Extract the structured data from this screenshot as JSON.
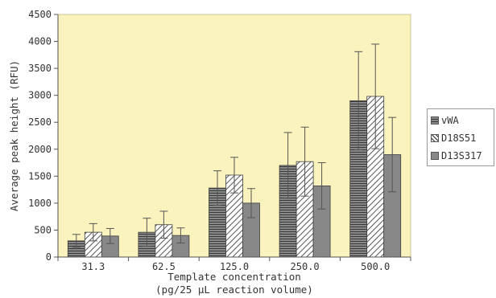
{
  "chart_data": {
    "type": "bar",
    "title": "",
    "xlabel_line1": "Template concentration",
    "xlabel_line2": "(pg/25 μL reaction volume)",
    "ylabel": "Average peak height (RFU)",
    "ylim": [
      0,
      4500
    ],
    "yticks": [
      0,
      500,
      1000,
      1500,
      2000,
      2500,
      3000,
      3500,
      4000,
      4500
    ],
    "grid": false,
    "legend_position": "right",
    "categories": [
      "31.3",
      "62.5",
      "125.0",
      "250.0",
      "500.0"
    ],
    "series": [
      {
        "name": "vWA",
        "values": [
          300,
          460,
          1280,
          1700,
          2900
        ],
        "errors": [
          120,
          260,
          320,
          610,
          910
        ]
      },
      {
        "name": "D18S51",
        "values": [
          460,
          600,
          1520,
          1770,
          2980
        ],
        "errors": [
          160,
          250,
          330,
          640,
          970
        ]
      },
      {
        "name": "D13S317",
        "values": [
          390,
          400,
          1000,
          1320,
          1900
        ],
        "errors": [
          140,
          140,
          270,
          430,
          690
        ]
      }
    ],
    "colors": {
      "plot_background": "#fbf3bd",
      "bar_fill": "#888888",
      "bar_stroke": "#3f3f3f",
      "hatch_line": "#555555",
      "error_bar": "#555555",
      "axis": "#555555",
      "text": "#333333"
    }
  }
}
